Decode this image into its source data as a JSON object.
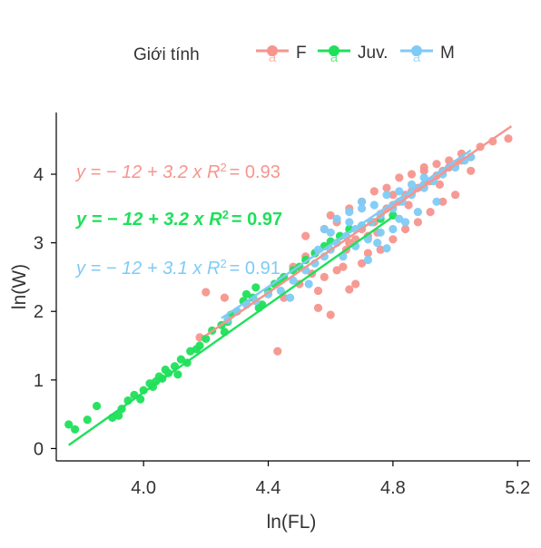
{
  "chart_data": {
    "type": "scatter",
    "xlabel": "ln(FL)",
    "ylabel": "ln(W)",
    "xlim": [
      3.72,
      5.24
    ],
    "ylim": [
      -0.18,
      4.9
    ],
    "x_ticks": [
      4.0,
      4.4,
      4.8,
      5.2
    ],
    "x_tick_labels": [
      "4.0",
      "4.4",
      "4.8",
      "5.2"
    ],
    "y_ticks": [
      0,
      1,
      2,
      3,
      4
    ],
    "y_tick_labels": [
      "0",
      "1",
      "2",
      "3",
      "4"
    ],
    "grid": false,
    "legend": {
      "title": "Giới tính",
      "position": "top",
      "key_glyph": "a",
      "entries": [
        "F",
        "Juv.",
        "M"
      ]
    },
    "series": [
      {
        "name": "F",
        "color": "#F8766D",
        "equation_lhs": "y = − 12 + 3.2 x",
        "r2_value": "= 0.93",
        "fit": {
          "x": [
            4.2,
            5.18
          ],
          "y": [
            1.65,
            4.7
          ]
        },
        "points": [
          [
            4.18,
            1.62
          ],
          [
            4.2,
            2.28
          ],
          [
            4.26,
            2.2
          ],
          [
            4.33,
            2.12
          ],
          [
            4.43,
            1.42
          ],
          [
            4.5,
            2.4
          ],
          [
            4.52,
            2.8
          ],
          [
            4.55,
            2.85
          ],
          [
            4.56,
            2.3
          ],
          [
            4.58,
            2.5
          ],
          [
            4.6,
            1.95
          ],
          [
            4.62,
            2.6
          ],
          [
            4.65,
            2.9
          ],
          [
            4.66,
            2.32
          ],
          [
            4.68,
            3.05
          ],
          [
            4.7,
            3.2
          ],
          [
            4.72,
            3.1
          ],
          [
            4.74,
            3.3
          ],
          [
            4.76,
            3.42
          ],
          [
            4.78,
            3.5
          ],
          [
            4.8,
            3.55
          ],
          [
            4.82,
            3.6
          ],
          [
            4.84,
            3.7
          ],
          [
            4.86,
            3.75
          ],
          [
            4.88,
            3.8
          ],
          [
            4.9,
            3.85
          ],
          [
            4.92,
            3.9
          ],
          [
            4.94,
            3.98
          ],
          [
            4.96,
            4.05
          ],
          [
            4.98,
            4.1
          ],
          [
            5.0,
            4.15
          ],
          [
            5.02,
            4.2
          ],
          [
            5.05,
            4.25
          ],
          [
            5.08,
            4.4
          ],
          [
            5.12,
            4.48
          ],
          [
            5.17,
            4.52
          ],
          [
            4.58,
            3.2
          ],
          [
            4.62,
            3.3
          ],
          [
            4.66,
            3.5
          ],
          [
            4.7,
            3.6
          ],
          [
            4.74,
            3.75
          ],
          [
            4.78,
            3.8
          ],
          [
            4.82,
            3.95
          ],
          [
            4.86,
            4.0
          ],
          [
            4.9,
            4.05
          ],
          [
            4.94,
            4.15
          ],
          [
            4.98,
            4.2
          ],
          [
            5.02,
            4.3
          ],
          [
            4.7,
            2.7
          ],
          [
            4.76,
            2.9
          ],
          [
            4.8,
            3.05
          ],
          [
            4.84,
            3.2
          ],
          [
            4.88,
            3.3
          ],
          [
            4.92,
            3.45
          ],
          [
            4.96,
            3.6
          ],
          [
            5.0,
            3.7
          ],
          [
            4.52,
            3.1
          ],
          [
            4.54,
            2.55
          ],
          [
            4.64,
            2.65
          ],
          [
            4.68,
            2.4
          ],
          [
            4.72,
            2.85
          ],
          [
            4.6,
            3.4
          ],
          [
            4.66,
            3.0
          ],
          [
            4.56,
            2.05
          ],
          [
            4.45,
            2.2
          ],
          [
            4.48,
            2.65
          ],
          [
            4.75,
            3.15
          ],
          [
            4.85,
            3.55
          ],
          [
            4.95,
            3.85
          ],
          [
            5.05,
            4.05
          ],
          [
            4.8,
            3.7
          ],
          [
            4.9,
            4.1
          ]
        ]
      },
      {
        "name": "Juv.",
        "color": "#00BA38",
        "equation_lhs": "y = − 12 + 3.2 x",
        "r2_value": "= 0.97",
        "fit": {
          "x": [
            3.76,
            4.8
          ],
          "y": [
            0.05,
            3.38
          ]
        },
        "points": [
          [
            3.76,
            0.35
          ],
          [
            3.78,
            0.28
          ],
          [
            3.82,
            0.42
          ],
          [
            3.85,
            0.62
          ],
          [
            3.9,
            0.45
          ],
          [
            3.93,
            0.58
          ],
          [
            3.95,
            0.7
          ],
          [
            3.97,
            0.78
          ],
          [
            3.99,
            0.72
          ],
          [
            4.0,
            0.85
          ],
          [
            4.02,
            0.95
          ],
          [
            4.03,
            0.9
          ],
          [
            4.05,
            1.05
          ],
          [
            4.06,
            1.02
          ],
          [
            4.07,
            1.15
          ],
          [
            4.08,
            1.1
          ],
          [
            4.1,
            1.2
          ],
          [
            4.12,
            1.3
          ],
          [
            4.14,
            1.25
          ],
          [
            4.15,
            1.42
          ],
          [
            4.17,
            1.45
          ],
          [
            4.2,
            1.6
          ],
          [
            4.22,
            1.72
          ],
          [
            4.25,
            1.8
          ],
          [
            4.27,
            1.85
          ],
          [
            4.3,
            2.0
          ],
          [
            4.32,
            2.15
          ],
          [
            4.35,
            2.2
          ],
          [
            4.37,
            2.05
          ],
          [
            4.4,
            2.3
          ],
          [
            4.42,
            2.4
          ],
          [
            4.45,
            2.5
          ],
          [
            4.48,
            2.6
          ],
          [
            4.5,
            2.65
          ],
          [
            4.52,
            2.75
          ],
          [
            4.55,
            2.85
          ],
          [
            4.58,
            2.95
          ],
          [
            4.6,
            3.02
          ],
          [
            4.63,
            3.1
          ],
          [
            4.66,
            3.2
          ],
          [
            4.7,
            3.25
          ],
          [
            4.73,
            3.3
          ],
          [
            4.76,
            3.35
          ],
          [
            4.8,
            3.4
          ],
          [
            4.28,
            1.95
          ],
          [
            4.33,
            2.25
          ],
          [
            4.38,
            2.1
          ],
          [
            4.11,
            1.08
          ],
          [
            4.04,
            0.98
          ],
          [
            4.18,
            1.5
          ],
          [
            3.92,
            0.48
          ],
          [
            4.26,
            1.7
          ],
          [
            4.36,
            2.35
          ],
          [
            4.44,
            2.45
          ]
        ]
      },
      {
        "name": "M",
        "color": "#619CFF",
        "equation_lhs": "y = − 12 + 3.1 x",
        "r2_value": "= 0.91",
        "fit": {
          "x": [
            4.25,
            5.05
          ],
          "y": [
            1.9,
            4.35
          ]
        },
        "points": [
          [
            4.27,
            1.88
          ],
          [
            4.3,
            2.0
          ],
          [
            4.33,
            2.1
          ],
          [
            4.36,
            2.15
          ],
          [
            4.4,
            2.25
          ],
          [
            4.44,
            2.3
          ],
          [
            4.48,
            2.45
          ],
          [
            4.52,
            2.6
          ],
          [
            4.55,
            2.7
          ],
          [
            4.58,
            2.8
          ],
          [
            4.6,
            2.9
          ],
          [
            4.62,
            3.0
          ],
          [
            4.65,
            3.1
          ],
          [
            4.68,
            3.2
          ],
          [
            4.7,
            3.25
          ],
          [
            4.73,
            3.3
          ],
          [
            4.76,
            3.4
          ],
          [
            4.8,
            3.5
          ],
          [
            4.83,
            3.6
          ],
          [
            4.86,
            3.7
          ],
          [
            4.9,
            3.8
          ],
          [
            4.93,
            3.9
          ],
          [
            4.96,
            4.0
          ],
          [
            5.0,
            4.1
          ],
          [
            5.03,
            4.2
          ],
          [
            5.05,
            4.25
          ],
          [
            4.62,
            3.35
          ],
          [
            4.66,
            3.45
          ],
          [
            4.7,
            3.5
          ],
          [
            4.74,
            3.55
          ],
          [
            4.78,
            3.7
          ],
          [
            4.82,
            3.75
          ],
          [
            4.86,
            3.85
          ],
          [
            4.9,
            3.95
          ],
          [
            4.64,
            2.8
          ],
          [
            4.68,
            2.95
          ],
          [
            4.72,
            3.05
          ],
          [
            4.76,
            3.15
          ],
          [
            4.8,
            3.2
          ],
          [
            4.84,
            3.3
          ],
          [
            4.88,
            3.45
          ],
          [
            4.56,
            2.9
          ],
          [
            4.6,
            3.15
          ],
          [
            4.72,
            2.75
          ],
          [
            4.78,
            2.92
          ],
          [
            4.66,
            3.3
          ],
          [
            4.58,
            3.2
          ],
          [
            4.7,
            3.6
          ],
          [
            4.75,
            3.0
          ],
          [
            4.82,
            3.35
          ],
          [
            4.53,
            2.4
          ],
          [
            4.47,
            2.2
          ],
          [
            4.94,
            3.6
          ]
        ]
      }
    ]
  }
}
